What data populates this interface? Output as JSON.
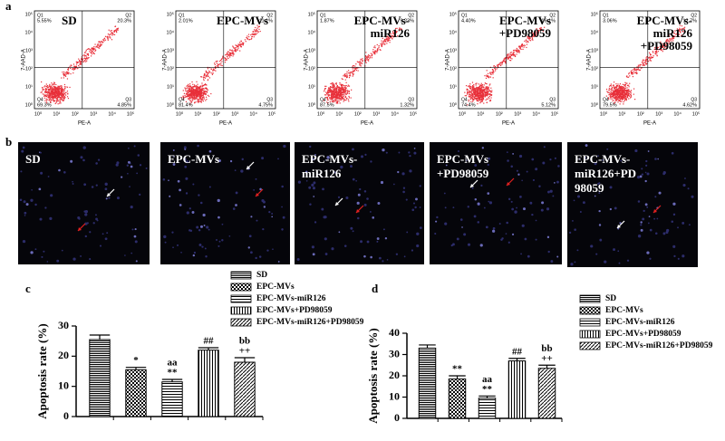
{
  "figure": {
    "panel_a": {
      "label": "a",
      "x_axis_label": "PE-A",
      "y_axis_label": "7-AAD-A",
      "axis_ticks": [
        "10⁰",
        "10¹",
        "10²",
        "10³",
        "10⁴",
        "10⁵"
      ],
      "quadrant_names": [
        "Q1",
        "Q2",
        "Q3",
        "Q4"
      ],
      "plots": [
        {
          "title": [
            "SD"
          ],
          "percentages": [
            "5.55%",
            "20.3%",
            "4.85%",
            "69.3%"
          ]
        },
        {
          "title": [
            "EPC-MVs"
          ],
          "percentages": [
            "2.01%",
            "11.1%",
            "4.75%",
            "81.4%"
          ]
        },
        {
          "title": [
            "EPC-MVs-",
            "miR126"
          ],
          "percentages": [
            "1.87%",
            "9.23%",
            "1.32%",
            "87.5%"
          ]
        },
        {
          "title": [
            "EPC-MVs",
            "+PD98059"
          ],
          "percentages": [
            "4.40%",
            "16.1%",
            "5.12%",
            "74.4%"
          ]
        },
        {
          "title": [
            "EPC-MVs-",
            "miR126",
            "+PD98059"
          ],
          "percentages": [
            "3.06%",
            "12.7%",
            "4.62%",
            "79.5%"
          ]
        }
      ]
    },
    "panel_b": {
      "label": "b",
      "images": [
        {
          "title": [
            "SD"
          ]
        },
        {
          "title": [
            "EPC-MVs"
          ]
        },
        {
          "title": [
            "EPC-MVs-",
            "miR126"
          ]
        },
        {
          "title": [
            "EPC-MVs",
            "+PD98059"
          ]
        },
        {
          "title": [
            "EPC-MVs-",
            "miR126+PD",
            "98059"
          ]
        }
      ]
    }
  },
  "chart_data": [
    {
      "type": "bar",
      "label": "c",
      "y_axis_label": "Apoptosis rate (%)",
      "categories": [
        "SD",
        "EPC-MVs",
        "EPC-MVs-miR126",
        "EPC-MVs+PD98059",
        "EPC-MVs-miR126+PD98059"
      ],
      "values": [
        25.5,
        15.5,
        11.5,
        22,
        18
      ],
      "errors": [
        1.5,
        0.8,
        0.8,
        0.8,
        1.5
      ],
      "annotations": [
        null,
        [
          "*"
        ],
        [
          "aa",
          "**"
        ],
        [
          "##"
        ],
        [
          "bb",
          "++"
        ]
      ],
      "ylim": [
        0,
        30
      ],
      "yticks": [
        0,
        10,
        20,
        30
      ]
    },
    {
      "type": "bar",
      "label": "d",
      "y_axis_label": "Apoptosis rate (%)",
      "categories": [
        "SD",
        "EPC-MVs",
        "EPC-MVs-miR126",
        "EPC-MVs+PD98059",
        "EPC-MVs-miR126+PD98059"
      ],
      "values": [
        33,
        18.5,
        9.5,
        27,
        23.5
      ],
      "errors": [
        1.5,
        1.5,
        1,
        1.2,
        1.5
      ],
      "annotations": [
        null,
        [
          "**"
        ],
        [
          "aa",
          "**"
        ],
        [
          "##"
        ],
        [
          "bb",
          "++"
        ]
      ],
      "ylim": [
        0,
        40
      ],
      "yticks": [
        0,
        10,
        20,
        30,
        40
      ]
    }
  ]
}
